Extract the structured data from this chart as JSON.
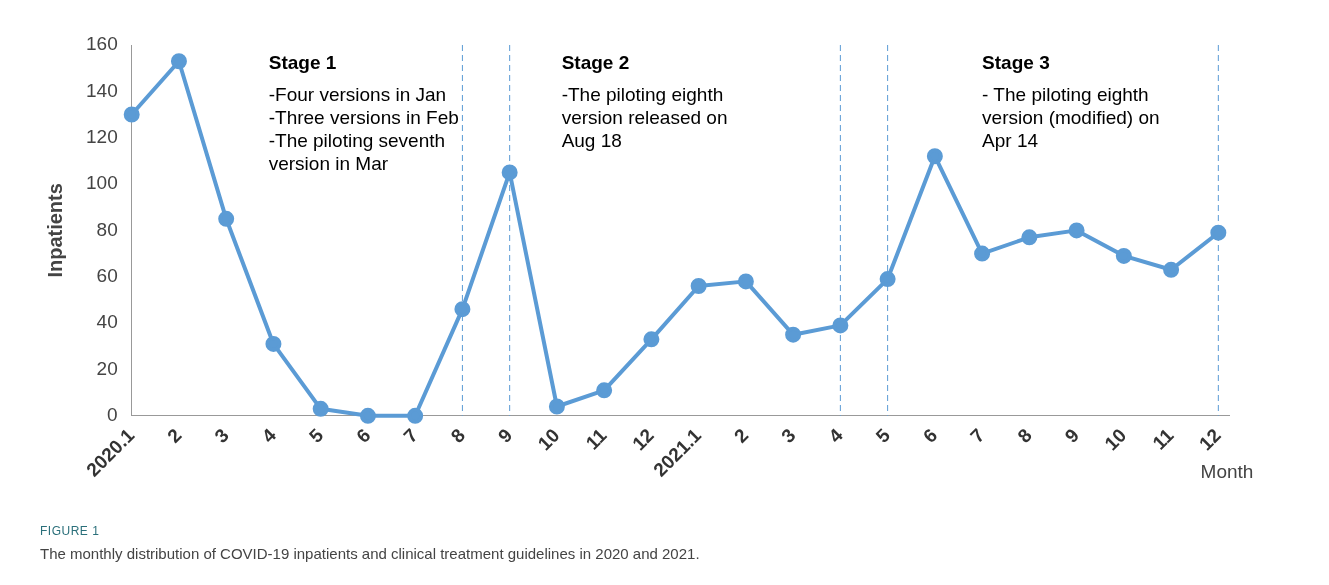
{
  "chart_data": {
    "type": "line",
    "xlabel": "Month",
    "ylabel": "Inpatients",
    "x": [
      "2020-01",
      "2020-02",
      "2020-03",
      "2020-04",
      "2020-05",
      "2020-06",
      "2020-07",
      "2020-08",
      "2020-09",
      "2020-10",
      "2020-11",
      "2020-12",
      "2021-01",
      "2021-02",
      "2021-03",
      "2021-04",
      "2021-05",
      "2021-06",
      "2021-07",
      "2021-08",
      "2021-09",
      "2021-10",
      "2021-11",
      "2021-12"
    ],
    "series": [
      {
        "color": "#5b9bd5",
        "values": [
          130,
          153,
          85,
          31,
          3,
          0,
          0,
          46,
          105,
          4,
          11,
          33,
          56,
          58,
          35,
          39,
          59,
          112,
          70,
          77,
          80,
          69,
          63,
          79
        ]
      }
    ],
    "xlim": [
      "2020-01",
      "2021-12-08"
    ],
    "xticks": [
      {
        "value": "2020-01",
        "label": "2020.1"
      },
      {
        "value": "2020-02",
        "label": "2"
      },
      {
        "value": "2020-03",
        "label": "3"
      },
      {
        "value": "2020-04",
        "label": "4"
      },
      {
        "value": "2020-05",
        "label": "5"
      },
      {
        "value": "2020-06",
        "label": "6"
      },
      {
        "value": "2020-07",
        "label": "7"
      },
      {
        "value": "2020-08",
        "label": "8"
      },
      {
        "value": "2020-09",
        "label": "9"
      },
      {
        "value": "2020-10",
        "label": "10"
      },
      {
        "value": "2020-11",
        "label": "11"
      },
      {
        "value": "2020-12",
        "label": "12"
      },
      {
        "value": "2021-01",
        "label": "2021.1"
      },
      {
        "value": "2021-02",
        "label": "2"
      },
      {
        "value": "2021-03",
        "label": "3"
      },
      {
        "value": "2021-04",
        "label": "4"
      },
      {
        "value": "2021-05",
        "label": "5"
      },
      {
        "value": "2021-06",
        "label": "6"
      },
      {
        "value": "2021-07",
        "label": "7"
      },
      {
        "value": "2021-08",
        "label": "8"
      },
      {
        "value": "2021-09",
        "label": "9"
      },
      {
        "value": "2021-10",
        "label": "10"
      },
      {
        "value": "2021-11",
        "label": "11"
      },
      {
        "value": "2021-12",
        "label": "12"
      }
    ],
    "ylim": [
      0,
      160
    ],
    "yticks": [
      0,
      20,
      40,
      60,
      80,
      100,
      120,
      140,
      160
    ],
    "grid": false,
    "legend": false,
    "marker": "circle",
    "line_style": "solid",
    "ref_lines": [
      {
        "axis": "x",
        "value": "2020-08",
        "line_style": "dashed",
        "color": "#5b9bd5"
      },
      {
        "axis": "x",
        "value": "2020-09",
        "line_style": "dashed",
        "color": "#5b9bd5"
      },
      {
        "axis": "x",
        "value": "2021-04",
        "line_style": "dashed",
        "color": "#5b9bd5"
      },
      {
        "axis": "x",
        "value": "2021-05",
        "line_style": "dashed",
        "color": "#5b9bd5"
      },
      {
        "axis": "x",
        "value": "2021-12",
        "line_style": "dashed",
        "color": "#5b9bd5"
      }
    ],
    "annotations": [
      "Stage 1",
      "-Four versions in Jan\n-Three versions in Feb\n-The piloting seventh\nversion in Mar",
      "Stage 2",
      "-The piloting eighth\nversion released on\nAug 18",
      "Stage 3",
      "- The piloting eighth\nversion (modified) on\nApr 14",
      "FIGURE 1",
      "The monthly distribution of COVID-19 inpatients and clinical treatment guidelines in 2020 and 2021."
    ]
  }
}
